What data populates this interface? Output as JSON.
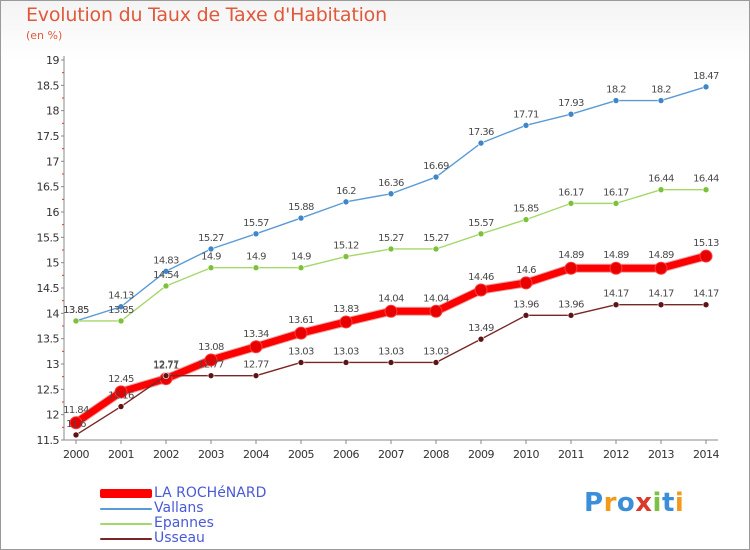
{
  "title": "Evolution du Taux de Taxe d'Habitation",
  "subtitle": "(en %)",
  "logo": {
    "text": "Proxiti",
    "letters": [
      {
        "ch": "P",
        "color": "#3a8fd8"
      },
      {
        "ch": "r",
        "color": "#f29a1c"
      },
      {
        "ch": "o",
        "color": "#3a8fd8"
      },
      {
        "ch": "x",
        "color": "#d93b2b"
      },
      {
        "ch": "i",
        "color": "#7cc142"
      },
      {
        "ch": "t",
        "color": "#3a8fd8"
      },
      {
        "ch": "i",
        "color": "#f29a1c"
      }
    ]
  },
  "chart_data": {
    "type": "line",
    "title": "Evolution du Taux de Taxe d'Habitation",
    "ylabel": "(en %)",
    "xlabel": "",
    "x": [
      "2000",
      "2001",
      "2002",
      "2003",
      "2004",
      "2005",
      "2006",
      "2007",
      "2008",
      "2009",
      "2010",
      "2011",
      "2012",
      "2013",
      "2014"
    ],
    "ylim": [
      11.5,
      19
    ],
    "yticks": [
      "11.5",
      "12",
      "12.5",
      "13",
      "13.5",
      "14",
      "14.5",
      "15",
      "15.5",
      "16",
      "16.5",
      "17",
      "17.5",
      "18",
      "18.5",
      "19"
    ],
    "grid": false,
    "legend_position": "bottom-left",
    "series": [
      {
        "name": "Vallans",
        "color": "#5b9bd5",
        "marker": "#3f86c8",
        "values": [
          13.85,
          14.13,
          14.83,
          15.27,
          15.57,
          15.88,
          16.2,
          16.36,
          16.69,
          17.36,
          17.71,
          17.93,
          18.2,
          18.2,
          18.47
        ],
        "labels": [
          "13.85",
          "14.13",
          "14.83",
          "15.27",
          "15.57",
          "15.88",
          "16.2",
          "16.36",
          "16.69",
          "17.36",
          "17.71",
          "17.93",
          "18.2",
          "18.2",
          "18.47"
        ]
      },
      {
        "name": "Epannes",
        "color": "#a5d86a",
        "marker": "#7dc13a",
        "values": [
          13.85,
          13.85,
          14.54,
          14.9,
          14.9,
          14.9,
          15.12,
          15.27,
          15.27,
          15.57,
          15.85,
          16.17,
          16.17,
          16.44,
          16.44
        ],
        "labels": [
          "13.85",
          "13.85",
          "14.54",
          "14.9",
          "14.9",
          "14.9",
          "15.12",
          "15.27",
          "15.27",
          "15.57",
          "15.85",
          "16.17",
          "16.17",
          "16.44",
          "16.44"
        ]
      },
      {
        "name": "LA ROCHéNARD",
        "color": "#ff0000",
        "marker": "#e80000",
        "values": [
          11.84,
          12.45,
          12.71,
          13.08,
          13.34,
          13.61,
          13.83,
          14.04,
          14.04,
          14.46,
          14.6,
          14.89,
          14.89,
          14.89,
          15.13
        ],
        "labels": [
          "11.84",
          "12.45",
          "12.71",
          "13.08",
          "13.34",
          "13.61",
          "13.83",
          "14.04",
          "14.04",
          "14.46",
          "14.6",
          "14.89",
          "14.89",
          "14.89",
          "15.13"
        ]
      },
      {
        "name": "Usseau",
        "color": "#7a2626",
        "marker": "#5e1414",
        "values": [
          11.6,
          12.16,
          12.77,
          12.77,
          12.77,
          13.03,
          13.03,
          13.03,
          13.03,
          13.49,
          13.96,
          13.96,
          14.17,
          14.17,
          14.17
        ],
        "labels": [
          "11.6",
          "12.16",
          "12.77",
          "12.77",
          "12.77",
          "13.03",
          "13.03",
          "13.03",
          "13.03",
          "13.49",
          "13.96",
          "13.96",
          "14.17",
          "14.17",
          "14.17"
        ]
      }
    ],
    "legend": [
      {
        "name": "LA ROCHéNARD",
        "color": "#ff0000",
        "thick": true
      },
      {
        "name": "Vallans",
        "color": "#5b9bd5",
        "thick": false
      },
      {
        "name": "Epannes",
        "color": "#a5d86a",
        "thick": false
      },
      {
        "name": "Usseau",
        "color": "#7a2626",
        "thick": false
      }
    ]
  }
}
